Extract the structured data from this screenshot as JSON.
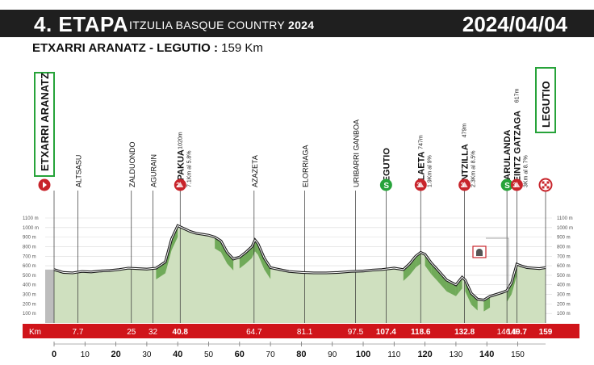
{
  "header": {
    "stage": "4. ETAPA",
    "race": "ITZULIA BASQUE COUNTRY",
    "year": "2024",
    "date": "2024/04/04"
  },
  "route": {
    "points": "ETXARRI ARANATZ - LEGUTIO :",
    "distance": "159 Km"
  },
  "start_name": "ETXARRI ARANATZ",
  "finish_name": "LEGUTIO",
  "km_row_label": "Km",
  "waypoints": [
    {
      "km": 7.7,
      "name": "ALTSASU",
      "type": "place"
    },
    {
      "km": 25,
      "name": "ZALDUONDO",
      "type": "place"
    },
    {
      "km": 32,
      "name": "AGURAIN",
      "type": "place"
    },
    {
      "km": 40.8,
      "name": "OPAKUA",
      "type": "climb",
      "cat": "2",
      "alt": "1020m",
      "info": "7.1Km al 5.8%"
    },
    {
      "km": 64.7,
      "name": "AZAZETA",
      "type": "place"
    },
    {
      "km": 81.1,
      "name": "ELORRIAGA",
      "type": "place"
    },
    {
      "km": 97.5,
      "name": "URIBARRI GANBOA",
      "type": "place"
    },
    {
      "km": 107.4,
      "name": "LEGUTIO",
      "type": "sprint",
      "cat": "S"
    },
    {
      "km": 118.6,
      "name": "OLAETA",
      "type": "climb",
      "cat": "3",
      "alt": "747m",
      "info": "1.9Km al 9%"
    },
    {
      "km": 132.8,
      "name": "UNTZILLA",
      "type": "climb",
      "cat": "3",
      "alt": "479m",
      "info": "2.3Km al 8.5%"
    },
    {
      "km": 146.5,
      "name": "MARULANDA",
      "type": "sprint",
      "cat": "S"
    },
    {
      "km": 149.7,
      "name": "LEINTZ GATZAGA",
      "type": "climb",
      "cat": "3",
      "alt": "617m",
      "info": "3Km al 8.7%"
    }
  ],
  "km_row": [
    "7.7",
    "25",
    "32",
    "40.8",
    "64.7",
    "81.1",
    "97.5",
    "107.4",
    "118.6",
    "132.8",
    "146.5",
    "149.7",
    "159"
  ],
  "km_row_bold": [
    "40.8",
    "107.4",
    "118.6",
    "132.8",
    "149.7",
    "159"
  ],
  "elevation_ticks": [
    "1100 m",
    "1000 m",
    "900 m",
    "800 m",
    "700 m",
    "600 m",
    "500 m",
    "400 m",
    "300 m",
    "200 m",
    "100 m"
  ],
  "x_ticks": [
    0,
    10,
    20,
    30,
    40,
    50,
    60,
    70,
    80,
    90,
    100,
    110,
    120,
    130,
    140,
    150
  ],
  "x_ticks_bold": [
    0,
    20,
    40,
    60,
    80,
    100,
    120,
    140
  ],
  "profile": [
    [
      0,
      560
    ],
    [
      3,
      530
    ],
    [
      6,
      525
    ],
    [
      9,
      540
    ],
    [
      12,
      535
    ],
    [
      15,
      545
    ],
    [
      18,
      550
    ],
    [
      21,
      560
    ],
    [
      24,
      575
    ],
    [
      27,
      570
    ],
    [
      30,
      565
    ],
    [
      33,
      575
    ],
    [
      36,
      640
    ],
    [
      38,
      880
    ],
    [
      40,
      1020
    ],
    [
      42,
      990
    ],
    [
      44,
      960
    ],
    [
      46,
      940
    ],
    [
      48,
      930
    ],
    [
      50,
      920
    ],
    [
      52,
      900
    ],
    [
      54,
      860
    ],
    [
      56,
      740
    ],
    [
      58,
      670
    ],
    [
      60,
      690
    ],
    [
      62,
      740
    ],
    [
      64,
      800
    ],
    [
      65,
      870
    ],
    [
      66,
      830
    ],
    [
      68,
      680
    ],
    [
      70,
      580
    ],
    [
      73,
      560
    ],
    [
      76,
      540
    ],
    [
      80,
      530
    ],
    [
      84,
      525
    ],
    [
      88,
      525
    ],
    [
      92,
      530
    ],
    [
      96,
      540
    ],
    [
      100,
      545
    ],
    [
      103,
      555
    ],
    [
      106,
      560
    ],
    [
      110,
      575
    ],
    [
      113,
      560
    ],
    [
      115,
      620
    ],
    [
      117,
      700
    ],
    [
      118.6,
      740
    ],
    [
      120,
      720
    ],
    [
      122,
      630
    ],
    [
      124,
      560
    ],
    [
      127,
      450
    ],
    [
      130,
      400
    ],
    [
      131,
      440
    ],
    [
      132,
      480
    ],
    [
      133,
      450
    ],
    [
      135,
      310
    ],
    [
      137,
      250
    ],
    [
      139,
      240
    ],
    [
      141,
      280
    ],
    [
      143,
      300
    ],
    [
      145,
      320
    ],
    [
      146.5,
      340
    ],
    [
      148,
      420
    ],
    [
      149.7,
      617
    ],
    [
      151,
      600
    ],
    [
      153,
      580
    ],
    [
      155,
      575
    ],
    [
      157,
      570
    ],
    [
      159,
      580
    ]
  ],
  "colors": {
    "header_bg": "#1f1f1f",
    "km_bar": "#d0141a",
    "climb": "#c8242b",
    "sprint": "#27a33a",
    "terrain": "#cfe0bf",
    "slope": "#5fa046"
  }
}
